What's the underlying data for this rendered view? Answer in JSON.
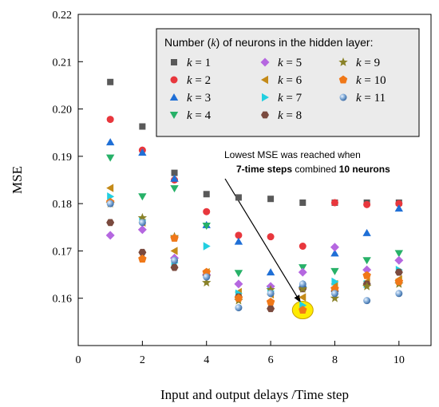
{
  "chart_data": {
    "type": "scatter",
    "xlabel": "Input and output delays  /Time step",
    "ylabel": "MSE",
    "xlim": [
      0,
      11
    ],
    "ylim": [
      0.15,
      0.22
    ],
    "xticks": [
      "0",
      "2",
      "4",
      "6",
      "8",
      "10"
    ],
    "yticks": [
      "0.16",
      "0.17",
      "0.18",
      "0.19",
      "0.20",
      "0.21",
      "0.22"
    ],
    "legend": {
      "title_prefix": "Number (",
      "title_var": "k",
      "title_suffix": ") of neurons in the hidden layer:",
      "placement": "top-right"
    },
    "annotation": {
      "line1": "Lowest MSE was reached when",
      "line2_bold1": "7-time steps",
      "line2_mid": " combined ",
      "line2_bold2": "10 neurons",
      "highlight": {
        "x": 7,
        "y": 0.1575
      },
      "highlight_color": "#ffeb00"
    },
    "series": [
      {
        "name": "k = 1",
        "k": "1",
        "marker": "square",
        "color": "#595959",
        "x": [
          1,
          2,
          3,
          4,
          5,
          6,
          7,
          8,
          9,
          10
        ],
        "y": [
          0.2057,
          0.1963,
          0.1865,
          0.182,
          0.1813,
          0.181,
          0.1802,
          0.1802,
          0.1802,
          0.1802
        ]
      },
      {
        "name": "k = 2",
        "k": "2",
        "marker": "circle",
        "color": "#e8373d",
        "x": [
          1,
          2,
          3,
          4,
          5,
          6,
          7,
          8,
          9,
          10
        ],
        "y": [
          0.1978,
          0.1913,
          0.185,
          0.1783,
          0.1733,
          0.173,
          0.171,
          0.1802,
          0.1798,
          0.18
        ]
      },
      {
        "name": "k = 3",
        "k": "3",
        "marker": "triangle-up",
        "color": "#1f6fd6",
        "x": [
          1,
          2,
          3,
          4,
          5,
          6,
          7,
          8,
          9,
          10
        ],
        "y": [
          0.193,
          0.1908,
          0.1853,
          0.1755,
          0.172,
          0.1655,
          0.163,
          0.1695,
          0.1738,
          0.179
        ]
      },
      {
        "name": "k = 4",
        "k": "4",
        "marker": "triangle-down",
        "color": "#27b168",
        "x": [
          1,
          2,
          3,
          4,
          5,
          6,
          7,
          8,
          9,
          10
        ],
        "y": [
          0.1897,
          0.1815,
          0.1832,
          0.1753,
          0.1653,
          0.162,
          0.1665,
          0.1657,
          0.168,
          0.1695
        ]
      },
      {
        "name": "k = 5",
        "k": "5",
        "marker": "diamond",
        "color": "#b567e0",
        "x": [
          1,
          2,
          3,
          4,
          5,
          6,
          7,
          8,
          9,
          10
        ],
        "y": [
          0.1733,
          0.1745,
          0.1685,
          0.165,
          0.163,
          0.1625,
          0.1655,
          0.1708,
          0.166,
          0.168
        ]
      },
      {
        "name": "k = 6",
        "k": "6",
        "marker": "triangle-left",
        "color": "#c48a18",
        "x": [
          1,
          2,
          3,
          4,
          5,
          6,
          7,
          8,
          9,
          10
        ],
        "y": [
          0.1833,
          0.176,
          0.17,
          0.1655,
          0.1613,
          0.1608,
          0.1602,
          0.163,
          0.1635,
          0.164
        ]
      },
      {
        "name": "k = 7",
        "k": "7",
        "marker": "triangle-right",
        "color": "#22cfe0",
        "x": [
          1,
          2,
          3,
          4,
          5,
          6,
          7,
          8,
          9,
          10
        ],
        "y": [
          0.1815,
          0.1765,
          0.1675,
          0.171,
          0.161,
          0.1615,
          0.1585,
          0.1635,
          0.163,
          0.166
        ]
      },
      {
        "name": "k = 8",
        "k": "8",
        "marker": "hexagon",
        "color": "#7a4a3e",
        "x": [
          1,
          2,
          3,
          4,
          5,
          6,
          7,
          8,
          9,
          10
        ],
        "y": [
          0.176,
          0.1697,
          0.1665,
          0.1648,
          0.1603,
          0.1578,
          0.162,
          0.1615,
          0.163,
          0.1655
        ]
      },
      {
        "name": "k = 9",
        "k": "9",
        "marker": "star",
        "color": "#8a8228",
        "x": [
          1,
          2,
          3,
          4,
          5,
          6,
          7,
          8,
          9,
          10
        ],
        "y": [
          0.18,
          0.177,
          0.173,
          0.1633,
          0.1595,
          0.1618,
          0.162,
          0.16,
          0.1625,
          0.163
        ]
      },
      {
        "name": "k = 10",
        "k": "10",
        "marker": "pentagon",
        "color": "#f07818",
        "x": [
          1,
          2,
          3,
          4,
          5,
          6,
          7,
          8,
          9,
          10
        ],
        "y": [
          0.1803,
          0.1683,
          0.1727,
          0.1655,
          0.16,
          0.1592,
          0.1575,
          0.162,
          0.1648,
          0.1635
        ]
      },
      {
        "name": "k = 11",
        "k": "11",
        "marker": "sphere",
        "color": "#6f9fcf",
        "x": [
          1,
          2,
          3,
          4,
          5,
          6,
          7,
          8,
          9,
          10
        ],
        "y": [
          0.18,
          0.176,
          0.168,
          0.1645,
          0.158,
          0.161,
          0.163,
          0.161,
          0.1595,
          0.161
        ]
      }
    ]
  }
}
